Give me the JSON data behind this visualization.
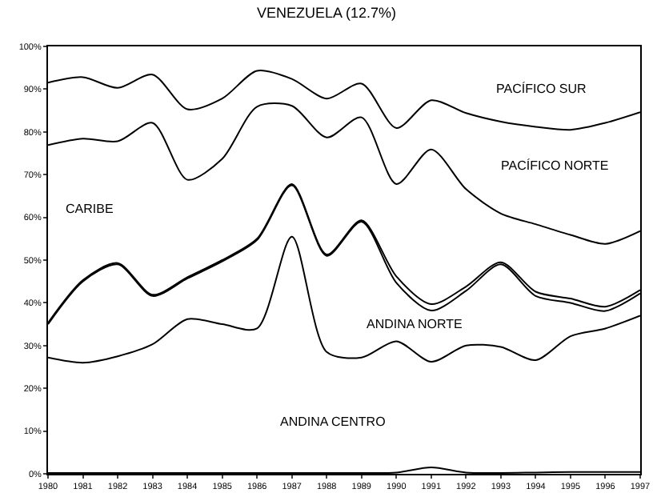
{
  "chart_data": {
    "type": "line",
    "title": "VENEZUELA (12.7%)",
    "x": [
      1980,
      1981,
      1982,
      1983,
      1984,
      1985,
      1986,
      1987,
      1988,
      1989,
      1990,
      1991,
      1992,
      1993,
      1994,
      1995,
      1996,
      1997
    ],
    "xlim": [
      1980,
      1997
    ],
    "xticks": [
      1980,
      1981,
      1982,
      1983,
      1984,
      1985,
      1986,
      1987,
      1988,
      1989,
      1990,
      1991,
      1992,
      1993,
      1994,
      1995,
      1996,
      1997
    ],
    "ylim": [
      0,
      100
    ],
    "yticks": [
      {
        "value": 0,
        "label": "0%"
      },
      {
        "value": 10,
        "label": "10%"
      },
      {
        "value": 20,
        "label": "20%"
      },
      {
        "value": 30,
        "label": "30%"
      },
      {
        "value": 40,
        "label": "40%"
      },
      {
        "value": 50,
        "label": "50%"
      },
      {
        "value": 60,
        "label": "60%"
      },
      {
        "value": 70,
        "label": "70%"
      },
      {
        "value": 80,
        "label": "80%"
      },
      {
        "value": 90,
        "label": "90%"
      },
      {
        "value": 100,
        "label": "100%"
      }
    ],
    "series": [
      {
        "color": "#000000",
        "values": [
          0.2,
          0.2,
          0.2,
          0.2,
          0.2,
          0.2,
          0.2,
          0.2,
          0.2,
          0.2,
          0.3,
          1.5,
          0.3,
          0.2,
          0.3,
          0.4,
          0.4,
          0.4
        ]
      },
      {
        "color": "#000000",
        "values": [
          27.2,
          26,
          27.5,
          30.3,
          36.2,
          35,
          34,
          55.5,
          28.5,
          27.2,
          31,
          26.2,
          30,
          29.7,
          26.6,
          32.2,
          34,
          37
        ]
      },
      {
        "color": "#000000",
        "values": [
          35,
          45,
          49,
          41.6,
          45.7,
          49.7,
          54.7,
          67.5,
          51,
          59,
          44.7,
          38.2,
          42.8,
          49,
          41.6,
          40,
          38.1,
          42.2
        ]
      },
      {
        "color": "#000000",
        "values": [
          35.3,
          45.3,
          49.3,
          41.9,
          46,
          50,
          55,
          67.8,
          51.3,
          59.3,
          46.2,
          39.7,
          43.8,
          49.5,
          42.6,
          41,
          39.1,
          43
        ]
      },
      {
        "color": "#000000",
        "values": [
          76.9,
          78.4,
          77.8,
          82.1,
          68.8,
          73.7,
          85.9,
          86.1,
          78.7,
          83.4,
          67.8,
          75.9,
          66.6,
          60.9,
          58.4,
          55.9,
          53.8,
          56.8
        ]
      },
      {
        "color": "#000000",
        "values": [
          91.5,
          92.8,
          90.3,
          93.4,
          85.3,
          87.8,
          94.3,
          92.4,
          87.8,
          91.3,
          80.9,
          87.4,
          84.4,
          82.4,
          81.2,
          80.5,
          82.1,
          84.6
        ]
      }
    ],
    "annotations": [
      "ANDINA CENTRO",
      "ANDINA NORTE",
      "CARIBE",
      "PACÍFICO NORTE",
      "PACÍFICO SUR"
    ]
  }
}
